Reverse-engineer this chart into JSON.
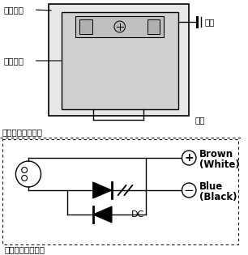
{
  "title_ac": "交流电磁阀接线图",
  "title_dc": "直流电磁阀接线图",
  "label_coil": "线圈外壳",
  "label_base": "接线底座",
  "label_ground": "接地",
  "label_power": "电源",
  "label_brown": "Brown",
  "label_white": "(White)",
  "label_blue": "Blue",
  "label_black": "(Black)",
  "label_dc": "DC",
  "bg_color": "#ffffff",
  "line_color": "#000000",
  "outer_fill": "#e8e8e8",
  "inner_fill": "#d0d0d0",
  "connector_fill": "#c8c8c8"
}
